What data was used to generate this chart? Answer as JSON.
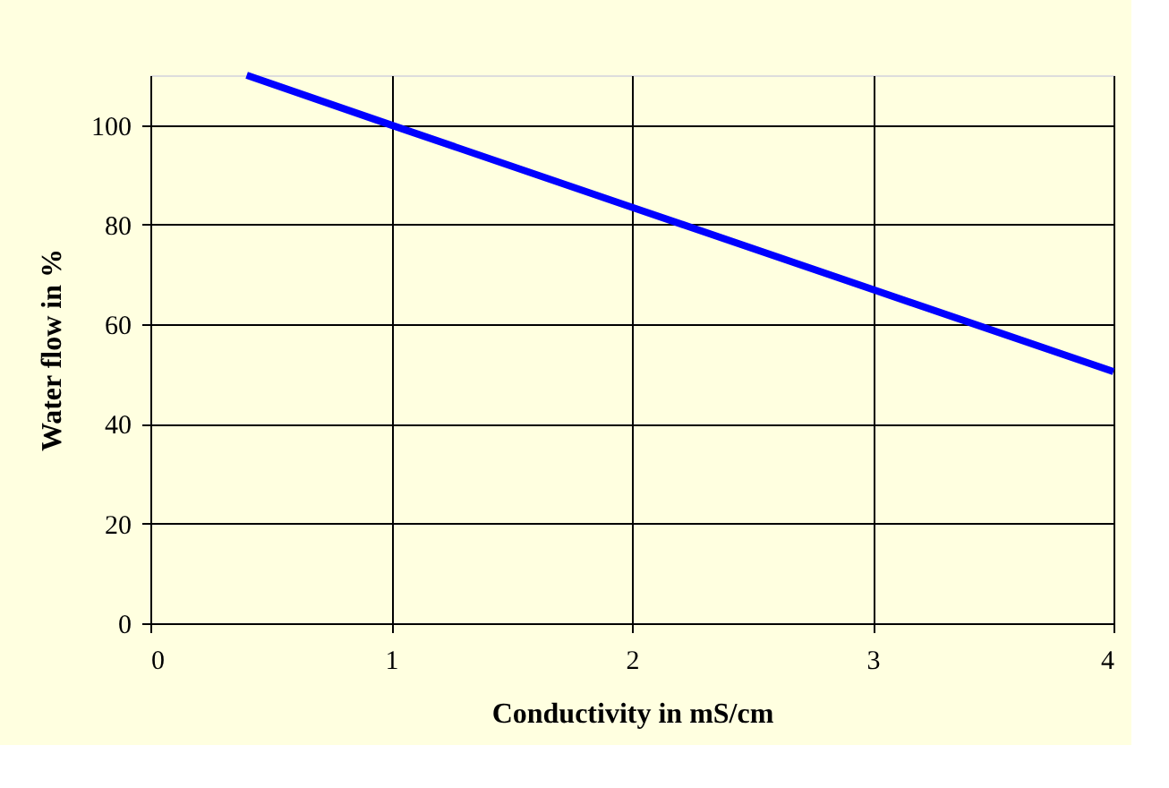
{
  "chart_data": {
    "type": "line",
    "xlabel": "Conductivity in mS/cm",
    "ylabel": "Water flow in %",
    "x": [
      0.4,
      1,
      2,
      3,
      4
    ],
    "series": [
      {
        "color": "#0000ff",
        "values": [
          110,
          100,
          83.5,
          67,
          50.5
        ]
      }
    ],
    "xlim": [
      0,
      4
    ],
    "xticks": [
      0,
      1,
      2,
      3,
      4
    ],
    "ylim": [
      0,
      110
    ],
    "yticks": [
      0,
      20,
      40,
      60,
      80,
      100
    ],
    "grid": true,
    "marker": "none",
    "line_style": "solid"
  }
}
